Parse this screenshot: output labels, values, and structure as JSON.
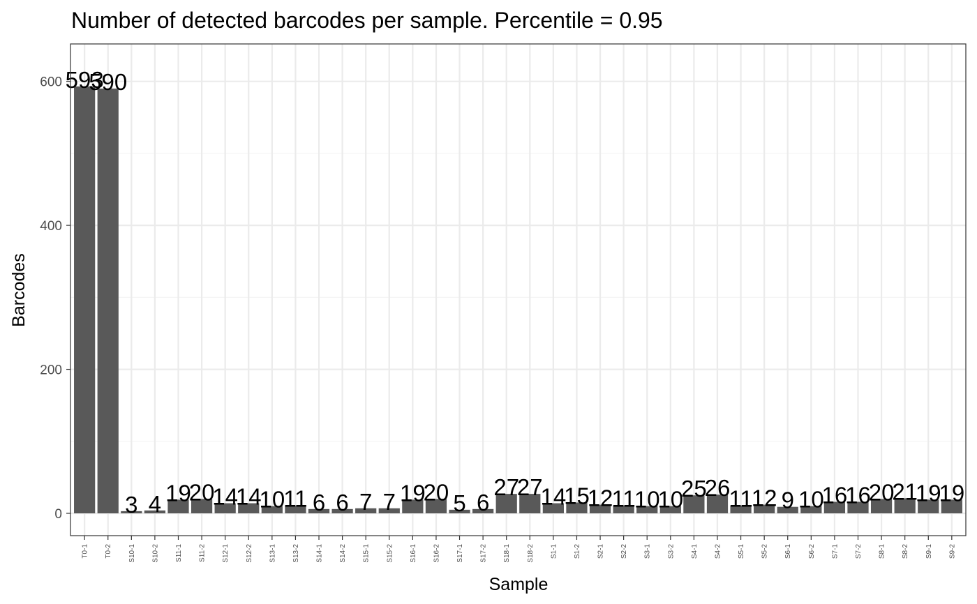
{
  "chart_data": {
    "type": "bar",
    "title": "Number of detected barcodes per sample. Percentile = 0.95",
    "xlabel": "Sample",
    "ylabel": "Barcodes",
    "ylim": [
      -31,
      652
    ],
    "yticks": [
      0,
      200,
      400,
      600
    ],
    "grid": true,
    "bar_color": "#595959",
    "panel_border_color": "#333333",
    "grid_major_color": "#ebebeb",
    "grid_minor_color": "#f5f5f5",
    "categories": [
      "T0-1",
      "T0-2",
      "S10-1",
      "S10-2",
      "S11-1",
      "S11-2",
      "S12-1",
      "S12-2",
      "S13-1",
      "S13-2",
      "S14-1",
      "S14-2",
      "S15-1",
      "S15-2",
      "S16-1",
      "S16-2",
      "S17-1",
      "S17-2",
      "S18-1",
      "S18-2",
      "S1-1",
      "S1-2",
      "S2-1",
      "S2-2",
      "S3-1",
      "S3-2",
      "S4-1",
      "S4-2",
      "S5-1",
      "S5-2",
      "S6-1",
      "S6-2",
      "S7-1",
      "S7-2",
      "S8-1",
      "S8-2",
      "S9-1",
      "S9-2"
    ],
    "values": [
      593,
      590,
      3,
      4,
      19,
      20,
      14,
      14,
      10,
      11,
      6,
      6,
      7,
      7,
      19,
      20,
      5,
      6,
      27,
      27,
      14,
      15,
      12,
      11,
      10,
      10,
      25,
      26,
      11,
      12,
      9,
      10,
      16,
      16,
      20,
      21,
      19,
      19
    ]
  }
}
